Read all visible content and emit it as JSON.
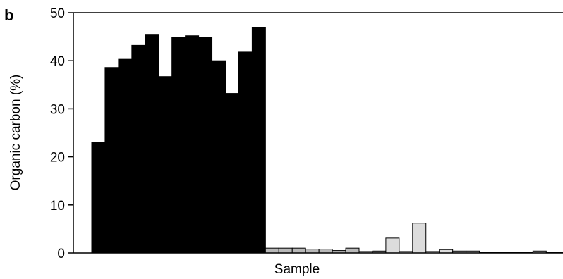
{
  "panel_label": "b",
  "chart_data": {
    "type": "bar",
    "xlabel": "Sample",
    "ylabel": "Organic carbon (%)",
    "ylim": [
      0,
      50
    ],
    "yticks": [
      0,
      10,
      20,
      30,
      40,
      50
    ],
    "grid": false,
    "series": [
      {
        "color": "#000000",
        "values": [
          23,
          38.6,
          40.3,
          43.2,
          45.5,
          36.7,
          44.9,
          45.2,
          44.8,
          40.0,
          33.2,
          41.8,
          46.9
        ]
      },
      {
        "color": "#b8b8b8",
        "values": [
          1.0,
          1.0,
          1.0,
          0.8,
          0.8,
          0.5,
          1.0,
          0.3,
          0.4
        ]
      },
      {
        "color": "#dcdcdc",
        "values": [
          3.1,
          0.3,
          6.2,
          0.3,
          0.7,
          0.4,
          0.4,
          0.1,
          0.1,
          0.1,
          0.1,
          0.4,
          0.1,
          0.1
        ]
      }
    ]
  }
}
